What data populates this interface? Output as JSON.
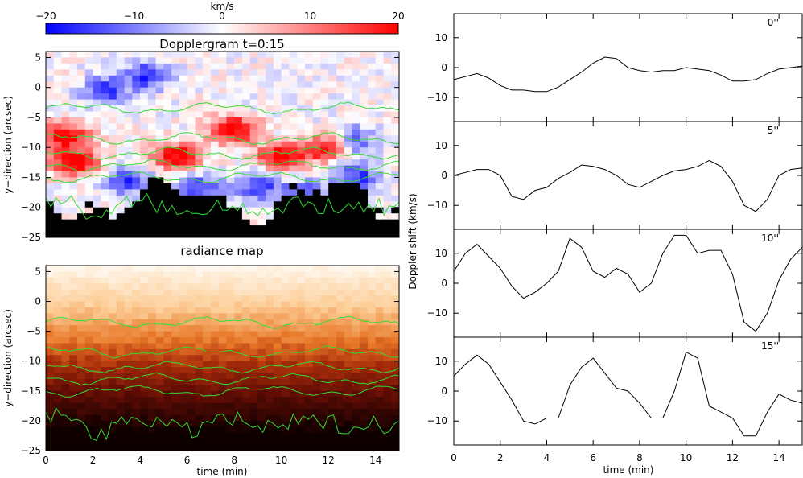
{
  "colorbar": {
    "unit": "km/s",
    "ticks": [
      "−20",
      "−10",
      "0",
      "10",
      "20"
    ],
    "range": [
      -20,
      20
    ]
  },
  "doppler_map": {
    "title": "Dopplergram t=0:15",
    "ylabel": "y−direction (arcsec)",
    "yticks": [
      "5",
      "0",
      "−5",
      "−10",
      "−15",
      "−20",
      "−25"
    ]
  },
  "radiance_map": {
    "title": "radiance map",
    "ylabel": "y−direction (arcsec)",
    "yticks": [
      "5",
      "0",
      "−5",
      "−10",
      "−15",
      "−20",
      "−25"
    ],
    "xlabel": "time (min)",
    "xticks": [
      "0",
      "2",
      "4",
      "6",
      "8",
      "10",
      "12",
      "14"
    ]
  },
  "right_panels": {
    "ylabel": "Doppler shift (km/s)",
    "xlabel": "time (min)",
    "xticks": [
      "0",
      "2",
      "4",
      "6",
      "8",
      "10",
      "12",
      "14"
    ],
    "yticks": [
      "10",
      "0",
      "−10"
    ]
  },
  "chart_data": [
    {
      "type": "heatmap",
      "title": "Dopplergram t=0:15",
      "xlabel": "",
      "ylabel": "y−direction (arcsec)",
      "xlim": [
        0,
        15
      ],
      "ylim": [
        -25,
        6
      ],
      "colorbar_label": "km/s",
      "colorbar_range": [
        -20,
        20
      ],
      "contour_levels_y": [
        -3.5,
        -8.5,
        -11,
        -13,
        -15
      ]
    },
    {
      "type": "heatmap",
      "title": "radiance map",
      "xlabel": "time (min)",
      "ylabel": "y−direction (arcsec)",
      "xlim": [
        0,
        15
      ],
      "ylim": [
        -25,
        6
      ],
      "contour_levels_y": [
        -3.5,
        -8.5,
        -11,
        -13,
        -15
      ]
    },
    {
      "type": "line",
      "label": "0''",
      "xlabel": "",
      "ylabel": "Doppler shift (km/s)",
      "xlim": [
        0,
        15
      ],
      "ylim": [
        -18,
        18
      ],
      "x": [
        0,
        0.5,
        1.0,
        1.5,
        2.0,
        2.5,
        3.0,
        3.5,
        4.0,
        4.5,
        5.0,
        5.5,
        6.0,
        6.5,
        7.0,
        7.5,
        8.0,
        8.5,
        9.0,
        9.5,
        10.0,
        10.5,
        11.0,
        11.5,
        12.0,
        12.5,
        13.0,
        13.5,
        14.0,
        14.5,
        15.0
      ],
      "y": [
        -4,
        -3,
        -2,
        -3.5,
        -6,
        -7.5,
        -7.5,
        -8,
        -8,
        -6.5,
        -4,
        -1.5,
        1.5,
        3.5,
        3,
        0,
        -1,
        -1.5,
        -1,
        -1,
        0,
        -0.5,
        -1,
        -2.5,
        -4.5,
        -4.5,
        -4,
        -2,
        -0.5,
        0,
        0.5
      ]
    },
    {
      "type": "line",
      "label": "5''",
      "xlabel": "",
      "ylabel": "Doppler shift (km/s)",
      "xlim": [
        0,
        15
      ],
      "ylim": [
        -18,
        18
      ],
      "x": [
        0,
        0.5,
        1.0,
        1.5,
        2.0,
        2.5,
        3.0,
        3.5,
        4.0,
        4.5,
        5.0,
        5.5,
        6.0,
        6.5,
        7.0,
        7.5,
        8.0,
        8.5,
        9.0,
        9.5,
        10.0,
        10.5,
        11.0,
        11.5,
        12.0,
        12.5,
        13.0,
        13.5,
        14.0,
        14.5,
        15.0
      ],
      "y": [
        0,
        1,
        2,
        2,
        0,
        -7,
        -8,
        -5,
        -4,
        -1,
        1,
        3.5,
        3,
        2,
        0,
        -3,
        -4,
        -2,
        0,
        1.5,
        2,
        3,
        5,
        3,
        -2,
        -10,
        -12,
        -8,
        0,
        2,
        2.5
      ]
    },
    {
      "type": "line",
      "label": "10''",
      "xlabel": "",
      "ylabel": "Doppler shift (km/s)",
      "xlim": [
        0,
        15
      ],
      "ylim": [
        -18,
        18
      ],
      "x": [
        0,
        0.5,
        1.0,
        1.5,
        2.0,
        2.5,
        3.0,
        3.5,
        4.0,
        4.5,
        5.0,
        5.5,
        6.0,
        6.5,
        7.0,
        7.5,
        8.0,
        8.5,
        9.0,
        9.5,
        10.0,
        10.5,
        11.0,
        11.5,
        12.0,
        12.5,
        13.0,
        13.5,
        14.0,
        14.5,
        15.0
      ],
      "y": [
        4,
        10,
        13,
        9,
        5,
        -1,
        -5,
        -3,
        0,
        4,
        15,
        12,
        4,
        2,
        5,
        3,
        -3,
        0,
        10,
        16,
        16,
        10,
        11,
        11,
        3,
        -13,
        -16,
        -10,
        1,
        8,
        12
      ]
    },
    {
      "type": "line",
      "label": "15''",
      "xlabel": "time (min)",
      "ylabel": "Doppler shift (km/s)",
      "xlim": [
        0,
        15
      ],
      "ylim": [
        -18,
        18
      ],
      "x": [
        0,
        0.5,
        1.0,
        1.5,
        2.0,
        2.5,
        3.0,
        3.5,
        4.0,
        4.5,
        5.0,
        5.5,
        6.0,
        6.5,
        7.0,
        7.5,
        8.0,
        8.5,
        9.0,
        9.5,
        10.0,
        10.5,
        11.0,
        11.5,
        12.0,
        12.5,
        13.0,
        13.5,
        14.0,
        14.5,
        15.0
      ],
      "y": [
        5,
        9,
        12,
        9,
        3,
        -3,
        -10,
        -11,
        -9,
        -9,
        2,
        8,
        11,
        6,
        1,
        0,
        -4,
        -9,
        -9,
        0,
        13,
        11,
        -5,
        -7,
        -9,
        -15,
        -15,
        -7,
        -1,
        -3,
        -4
      ]
    }
  ]
}
